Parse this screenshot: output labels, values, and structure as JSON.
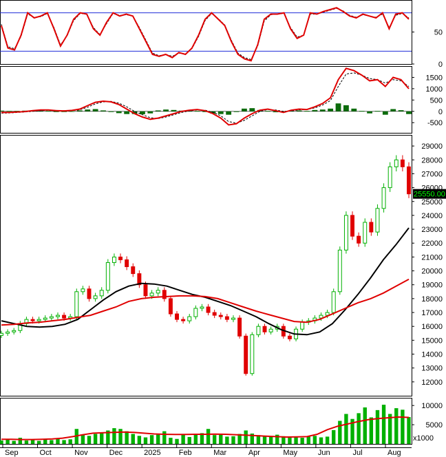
{
  "chart_data": {
    "type": "candlestick-stock-chart",
    "x_axis": {
      "labels": [
        "Sep",
        "Oct",
        "Nov",
        "Dec",
        "2025",
        "Feb",
        "Mar",
        "Apr",
        "May",
        "Jun",
        "Jul",
        "Aug"
      ]
    },
    "panels": [
      {
        "name": "oscillator",
        "type": "line",
        "ylim": [
          0,
          100
        ],
        "ticks": [
          0,
          50
        ],
        "reference_lines": [
          80,
          20
        ],
        "reference_color": "#1f2bd8",
        "series": [
          {
            "color": "#e00000",
            "style": "solid",
            "values": [
              60,
              25,
              22,
              45,
              80,
              72,
              75,
              80,
              55,
              28,
              45,
              70,
              80,
              78,
              55,
              45,
              65,
              80,
              75,
              78,
              75,
              55,
              35,
              15,
              12,
              15,
              10,
              18,
              15,
              25,
              45,
              70,
              80,
              70,
              60,
              35,
              15,
              8,
              5,
              30,
              70,
              78,
              78,
              80,
              55,
              40,
              45,
              80,
              78,
              82,
              85,
              88,
              82,
              75,
              72,
              78,
              75,
              72,
              80,
              55,
              78,
              80,
              70
            ]
          },
          {
            "color": "#000000",
            "style": "dashed",
            "values": [
              62,
              27,
              24,
              43,
              78,
              73,
              74,
              79,
              57,
              30,
              44,
              68,
              79,
              78,
              57,
              46,
              63,
              79,
              76,
              77,
              75,
              57,
              37,
              17,
              13,
              15,
              12,
              17,
              16,
              24,
              43,
              68,
              79,
              71,
              61,
              37,
              17,
              10,
              7,
              28,
              67,
              77,
              78,
              79,
              57,
              42,
              45,
              78,
              78,
              81,
              84,
              87,
              83,
              76,
              73,
              77,
              75,
              73,
              78,
              57,
              76,
              79,
              72
            ]
          }
        ]
      },
      {
        "name": "macd",
        "type": "line+histogram",
        "ylim": [
          -950,
          2000
        ],
        "ticks": [
          1500,
          1000,
          500,
          0,
          -500
        ],
        "histogram_colors": {
          "positive": "#0b6b0b",
          "negative": "#0b6b0b"
        },
        "series": [
          {
            "name": "",
            "color": "#e00000",
            "style": "solid",
            "values": [
              -50,
              -50,
              -30,
              -10,
              30,
              60,
              60,
              30,
              20,
              40,
              100,
              250,
              400,
              450,
              420,
              300,
              100,
              -100,
              -250,
              -350,
              -300,
              -200,
              -100,
              0,
              50,
              80,
              30,
              -100,
              -300,
              -600,
              -550,
              -300,
              -100,
              50,
              100,
              30,
              -50,
              50,
              100,
              80,
              200,
              350,
              600,
              1400,
              1900,
              1800,
              1600,
              1350,
              1400,
              1100,
              1500,
              1400,
              1000
            ]
          },
          {
            "name": "",
            "color": "#000000",
            "style": "dashed",
            "values": [
              -80,
              -70,
              -50,
              -30,
              0,
              30,
              50,
              40,
              30,
              30,
              70,
              180,
              330,
              420,
              440,
              360,
              200,
              0,
              -150,
              -280,
              -320,
              -250,
              -150,
              -50,
              20,
              60,
              50,
              -40,
              -200,
              -450,
              -520,
              -400,
              -200,
              0,
              80,
              60,
              0,
              20,
              70,
              80,
              150,
              280,
              480,
              1100,
              1650,
              1700,
              1600,
              1450,
              1400,
              1250,
              1400,
              1350,
              1100
            ]
          }
        ],
        "histogram": [
          30,
          20,
          20,
          30,
          40,
          40,
          20,
          -10,
          -10,
          10,
          40,
          80,
          100,
          40,
          -20,
          -80,
          -120,
          -120,
          -130,
          -90,
          40,
          80,
          60,
          30,
          30,
          20,
          -30,
          -100,
          -120,
          -150,
          -30,
          120,
          140,
          60,
          20,
          -40,
          -50,
          30,
          40,
          20,
          60,
          80,
          120,
          350,
          270,
          120,
          20,
          -90,
          20,
          -150,
          100,
          50,
          -120
        ]
      },
      {
        "name": "price",
        "type": "candlestick",
        "ylim": [
          11000,
          29800
        ],
        "ticks": [
          29000,
          28000,
          27000,
          26000,
          25000,
          24000,
          23000,
          22000,
          21000,
          20000,
          19000,
          18000,
          17000,
          16000,
          15000,
          14000,
          13000,
          12000
        ],
        "last_price_label": "25550.00",
        "up_color": "#00b000",
        "down_color": "#e00000",
        "close": [
          15500,
          15600,
          15700,
          16200,
          16500,
          16400,
          16500,
          16600,
          16700,
          16800,
          16600,
          16700,
          18500,
          18700,
          18000,
          18200,
          18600,
          20600,
          21000,
          20800,
          20300,
          19800,
          19000,
          18200,
          18400,
          18600,
          18000,
          16900,
          16500,
          16400,
          16700,
          17300,
          17400,
          17000,
          16800,
          16700,
          16500,
          16600,
          15300,
          12600,
          15400,
          16000,
          15600,
          15800,
          16000,
          15300,
          15100,
          15800,
          16300,
          16400,
          16600,
          16800,
          17000,
          18500,
          21500,
          24000,
          22500,
          22000,
          23500,
          22800,
          24500,
          26000,
          27500,
          28000,
          27500,
          25550
        ],
        "ma_series": [
          {
            "name": "",
            "color": "#000000",
            "style": "solid",
            "values": [
              16400,
              16200,
              16000,
              15950,
              16000,
              16150,
              16500,
              17200,
              17900,
              18500,
              18900,
              19100,
              19050,
              18900,
              18600,
              18300,
              18100,
              17800,
              17500,
              17100,
              16700,
              16200,
              15750,
              15450,
              15400,
              15600,
              16200,
              17200,
              18300,
              19500,
              20800,
              21900,
              23100
            ]
          },
          {
            "name": "",
            "color": "#e00000",
            "style": "solid",
            "values": [
              16100,
              16150,
              16250,
              16300,
              16400,
              16500,
              16650,
              16800,
              17100,
              17400,
              17800,
              18000,
              18100,
              18150,
              18200,
              18200,
              18150,
              18000,
              17700,
              17400,
              17100,
              16850,
              16600,
              16350,
              16300,
              16500,
              16900,
              17300,
              17700,
              18000,
              18400,
              18900,
              19400
            ]
          }
        ]
      },
      {
        "name": "volume",
        "type": "bar+line",
        "ylim": [
          0,
          12000
        ],
        "ticks": [
          10000,
          5000
        ],
        "unit_label": "x1000",
        "bar_color": "#00b000",
        "volume": [
          900,
          1100,
          800,
          1600,
          900,
          1000,
          800,
          1300,
          1000,
          1400,
          1000,
          1200,
          3900,
          2400,
          2100,
          2600,
          2800,
          3500,
          4100,
          3900,
          3300,
          2600,
          2100,
          1700,
          2300,
          2400,
          3300,
          1600,
          1300,
          2400,
          1800,
          2600,
          2800,
          3900,
          2300,
          2400,
          1900,
          2000,
          2600,
          3500,
          2700,
          2300,
          1900,
          2000,
          2400,
          2000,
          1800,
          1700,
          1600,
          1900,
          2100,
          1700,
          1900,
          3600,
          6000,
          7800,
          6500,
          8000,
          9500,
          6900,
          8800,
          10200,
          7800,
          9300,
          8900,
          7000
        ],
        "volume_ma": [
          1200,
          1200,
          1150,
          1150,
          1200,
          1300,
          1500,
          1900,
          2400,
          2800,
          2900,
          3000,
          3100,
          3000,
          2800,
          2600,
          2500,
          2450,
          2450,
          2500,
          2500,
          2550,
          2500,
          2400,
          2300,
          2150,
          2000,
          1900,
          1800,
          1850,
          1900,
          2500,
          3700,
          4600,
          5200,
          5800,
          6300,
          6600,
          6800,
          7000,
          6900
        ]
      }
    ]
  }
}
